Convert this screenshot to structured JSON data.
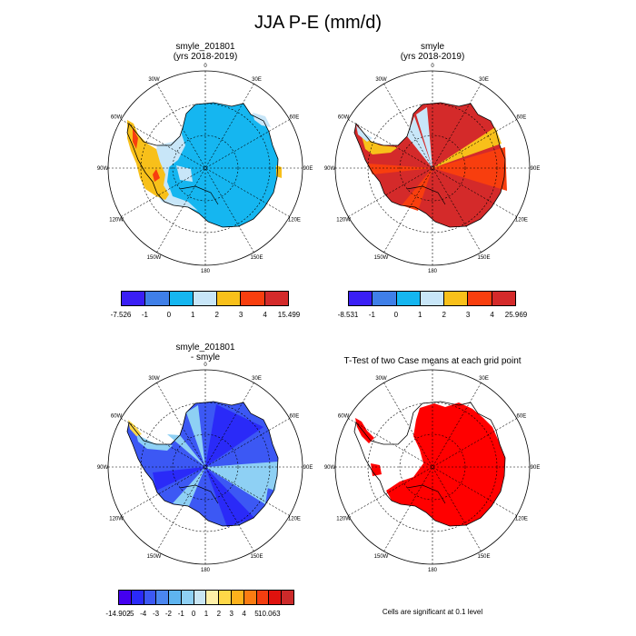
{
  "main_title": "JJA P-E (mm/d)",
  "panels": [
    {
      "title1": "smyle_201801",
      "title2": "(yrs 2018-2019)"
    },
    {
      "title1": "smyle",
      "title2": "(yrs 2018-2019)"
    },
    {
      "title1": "smyle_201801",
      "title2": "- smyle"
    },
    {
      "title1": "T-Test of two Case means at each grid point",
      "title2": ""
    }
  ],
  "lon_labels": [
    "0",
    "30E",
    "60E",
    "90E",
    "120E",
    "150E",
    "180",
    "150W",
    "120W",
    "90W",
    "60W",
    "30W"
  ],
  "colorbars": [
    {
      "labels": [
        "-7.526",
        "-1",
        "0",
        "1",
        "2",
        "3",
        "4",
        "15.499"
      ],
      "colors": [
        "#3a1ff5",
        "#3f7fe8",
        "#15b6f0",
        "#c8e6f8",
        "#f8c01a",
        "#f83e0e",
        "#d42a2a"
      ]
    },
    {
      "labels": [
        "-8.531",
        "-1",
        "0",
        "1",
        "2",
        "3",
        "4",
        "25.969"
      ],
      "colors": [
        "#3a1ff5",
        "#3f7fe8",
        "#15b6f0",
        "#c8e6f8",
        "#f8c01a",
        "#f83e0e",
        "#d42a2a"
      ]
    },
    {
      "labels": [
        "-14.902",
        "-5",
        "-4",
        "-3",
        "-2",
        "-1",
        "0",
        "1",
        "2",
        "3",
        "4",
        "5",
        "10.063"
      ],
      "colors": [
        "#4400f0",
        "#2a2af8",
        "#3c58f4",
        "#4a86f0",
        "#5eb4f0",
        "#8ed0f4",
        "#c9e6f4",
        "#fff0a8",
        "#fed848",
        "#fdb21c",
        "#fa7c12",
        "#f43e10",
        "#e0120e",
        "#cc2a2a"
      ]
    }
  ],
  "significance_note": "Cells are significant at 0.1 level",
  "fill_colors": {
    "p1_main": "#15b6f0",
    "p1_light": "#c8e6f8",
    "p1_orange": "#f8c01a",
    "p1_red": "#f83e0e",
    "p2_main": "#d42a2a",
    "p2_orange": "#f83e0e",
    "p2_yellow": "#f8c01a",
    "p2_light": "#c8e6f8",
    "p3_main": "#3c58f4",
    "p3_dark": "#2a2af8",
    "p3_light": "#8ed0f4",
    "p3_yellow": "#fed848",
    "p4_sig": "#ff0000"
  }
}
